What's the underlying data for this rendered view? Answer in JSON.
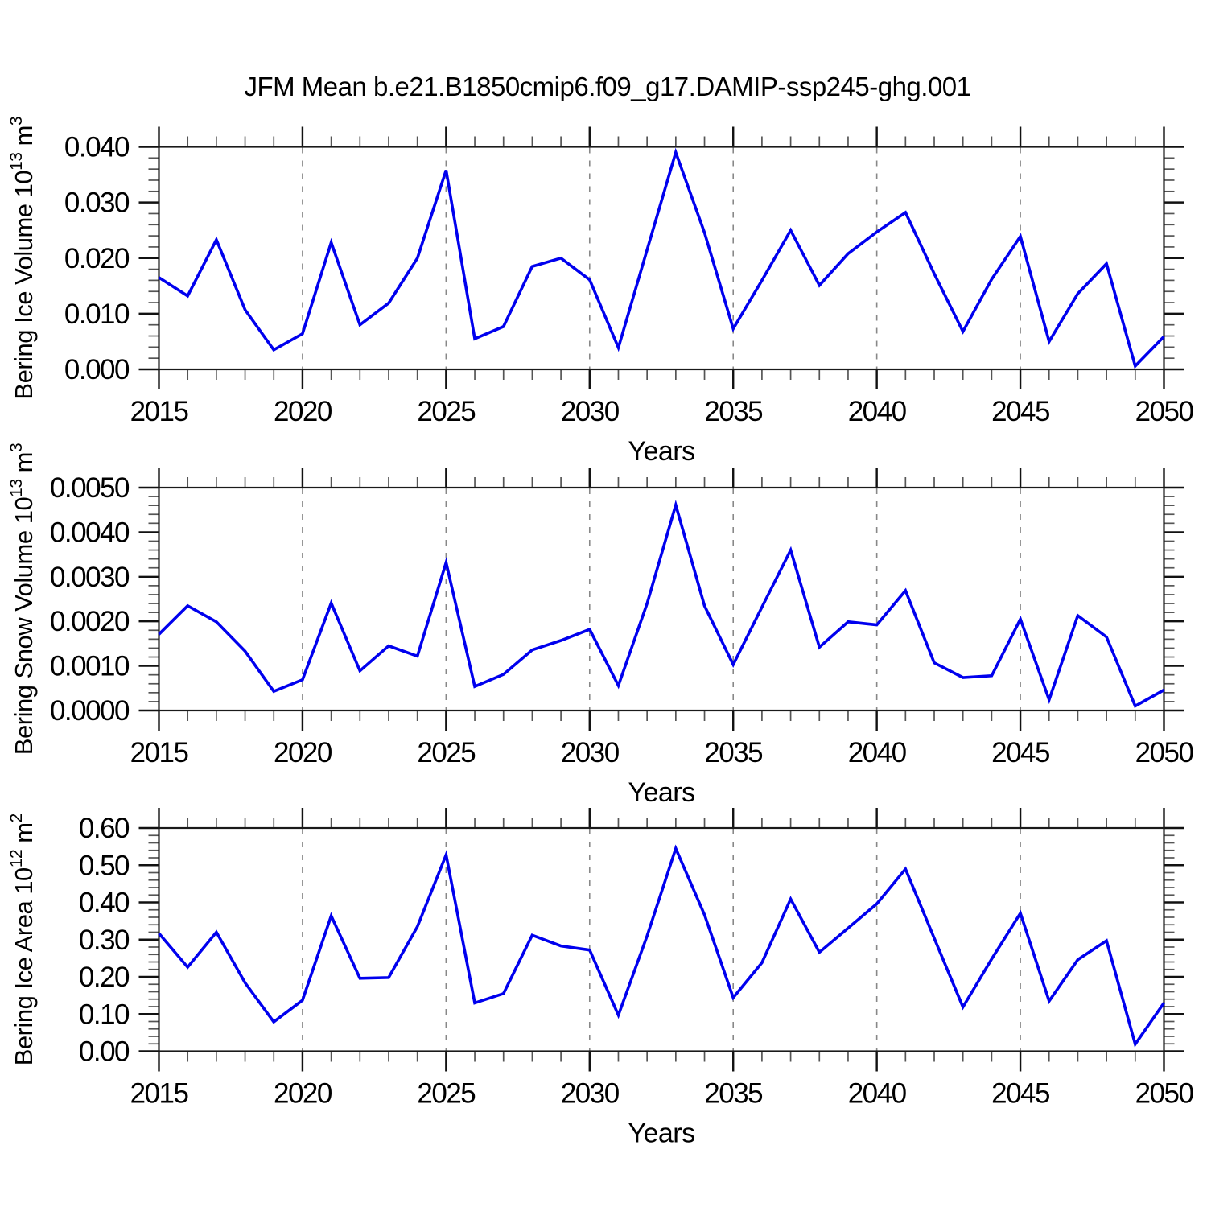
{
  "title": "JFM Mean b.e21.B1850cmip6.f09_g17.DAMIP-ssp245-ghg.001",
  "colors": {
    "line": "#0000ee",
    "frame": "#1a1a1a",
    "grid": "#888888",
    "major_tick": "#111111",
    "minor_tick": "#555555"
  },
  "chart_data": [
    {
      "type": "line",
      "title": "",
      "xlabel": "Years",
      "ylabel": {
        "base": "Bering Ice Volume 10",
        "exp": "13",
        "unit": " m",
        "unit_exp": "3"
      },
      "x": [
        2015,
        2016,
        2017,
        2018,
        2019,
        2020,
        2021,
        2022,
        2023,
        2024,
        2025,
        2026,
        2027,
        2028,
        2029,
        2030,
        2031,
        2032,
        2033,
        2034,
        2035,
        2036,
        2037,
        2038,
        2039,
        2040,
        2041,
        2042,
        2043,
        2044,
        2045,
        2046,
        2047,
        2048,
        2049,
        2050
      ],
      "values": [
        0.0165,
        0.0132,
        0.0233,
        0.0107,
        0.0035,
        0.0064,
        0.0228,
        0.008,
        0.0119,
        0.02,
        0.0358,
        0.0055,
        0.0077,
        0.0185,
        0.02,
        0.0161,
        0.0039,
        0.0215,
        0.039,
        0.0246,
        0.0073,
        0.016,
        0.025,
        0.0151,
        0.0208,
        0.0247,
        0.0282,
        0.0172,
        0.0068,
        0.0162,
        0.0239,
        0.005,
        0.0136,
        0.019,
        0.0006,
        0.0059
      ],
      "xlim": [
        2015,
        2050
      ],
      "ylim": [
        0.0,
        0.04
      ],
      "ytick_step": 0.01,
      "y_minor_per_major": 5,
      "ytick_labels": [
        "0.000",
        "0.010",
        "0.020",
        "0.030",
        "0.040"
      ],
      "xtick_labels": [
        "2015",
        "2020",
        "2025",
        "2030",
        "2035",
        "2040",
        "2045",
        "2050"
      ],
      "xtick_years": [
        2015,
        2020,
        2025,
        2030,
        2035,
        2040,
        2045,
        2050
      ],
      "x_minor_step": 1,
      "grid_years": [
        2020,
        2025,
        2030,
        2035,
        2040,
        2045
      ],
      "grid_style": "dashed",
      "legend": "none"
    },
    {
      "type": "line",
      "title": "",
      "xlabel": "Years",
      "ylabel": {
        "base": "Bering Snow Volume 10",
        "exp": "13",
        "unit": " m",
        "unit_exp": "3"
      },
      "x": [
        2015,
        2016,
        2017,
        2018,
        2019,
        2020,
        2021,
        2022,
        2023,
        2024,
        2025,
        2026,
        2027,
        2028,
        2029,
        2030,
        2031,
        2032,
        2033,
        2034,
        2035,
        2036,
        2037,
        2038,
        2039,
        2040,
        2041,
        2042,
        2043,
        2044,
        2045,
        2046,
        2047,
        2048,
        2049,
        2050
      ],
      "values": [
        0.00171,
        0.00235,
        0.00199,
        0.00133,
        0.00043,
        0.00069,
        0.00241,
        0.00089,
        0.00145,
        0.00122,
        0.00332,
        0.00054,
        0.00081,
        0.00136,
        0.00157,
        0.00182,
        0.00056,
        0.0024,
        0.00461,
        0.00235,
        0.00103,
        0.00232,
        0.0036,
        0.00142,
        0.00199,
        0.00192,
        0.00269,
        0.00107,
        0.00074,
        0.00078,
        0.00205,
        0.00024,
        0.00213,
        0.00165,
        0.0001,
        0.00046
      ],
      "xlim": [
        2015,
        2050
      ],
      "ylim": [
        0.0,
        0.005
      ],
      "ytick_step": 0.001,
      "y_minor_per_major": 5,
      "ytick_labels": [
        "0.0000",
        "0.0010",
        "0.0020",
        "0.0030",
        "0.0040",
        "0.0050"
      ],
      "xtick_labels": [
        "2015",
        "2020",
        "2025",
        "2030",
        "2035",
        "2040",
        "2045",
        "2050"
      ],
      "xtick_years": [
        2015,
        2020,
        2025,
        2030,
        2035,
        2040,
        2045,
        2050
      ],
      "x_minor_step": 1,
      "grid_years": [
        2020,
        2025,
        2030,
        2035,
        2040,
        2045
      ],
      "grid_style": "dashed",
      "legend": "none"
    },
    {
      "type": "line",
      "title": "",
      "xlabel": "Years",
      "ylabel": {
        "base": "Bering Ice Area 10",
        "exp": "12",
        "unit": " m",
        "unit_exp": "2"
      },
      "x": [
        2015,
        2016,
        2017,
        2018,
        2019,
        2020,
        2021,
        2022,
        2023,
        2024,
        2025,
        2026,
        2027,
        2028,
        2029,
        2030,
        2031,
        2032,
        2033,
        2034,
        2035,
        2036,
        2037,
        2038,
        2039,
        2040,
        2041,
        2042,
        2043,
        2044,
        2045,
        2046,
        2047,
        2048,
        2049,
        2050
      ],
      "values": [
        0.317,
        0.226,
        0.32,
        0.184,
        0.079,
        0.137,
        0.364,
        0.196,
        0.198,
        0.335,
        0.528,
        0.13,
        0.155,
        0.312,
        0.283,
        0.272,
        0.097,
        0.31,
        0.545,
        0.367,
        0.144,
        0.238,
        0.409,
        0.266,
        0.331,
        0.396,
        0.49,
        0.304,
        0.119,
        0.248,
        0.371,
        0.135,
        0.246,
        0.297,
        0.019,
        0.13
      ],
      "xlim": [
        2015,
        2050
      ],
      "ylim": [
        0.0,
        0.6
      ],
      "ytick_step": 0.1,
      "y_minor_per_major": 5,
      "ytick_labels": [
        "0.00",
        "0.10",
        "0.20",
        "0.30",
        "0.40",
        "0.50",
        "0.60"
      ],
      "xtick_labels": [
        "2015",
        "2020",
        "2025",
        "2030",
        "2035",
        "2040",
        "2045",
        "2050"
      ],
      "xtick_years": [
        2015,
        2020,
        2025,
        2030,
        2035,
        2040,
        2045,
        2050
      ],
      "x_minor_step": 1,
      "grid_years": [
        2020,
        2025,
        2030,
        2035,
        2040,
        2045
      ],
      "grid_style": "dashed",
      "legend": "none"
    }
  ]
}
